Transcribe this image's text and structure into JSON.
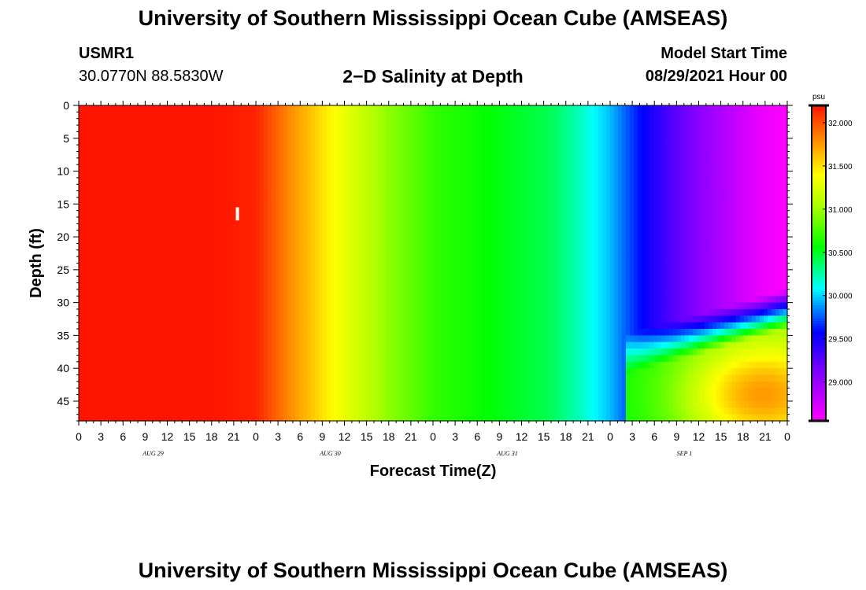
{
  "page": {
    "title_top": "University of Southern Mississippi Ocean Cube (AMSEAS)",
    "title_bottom": "University of Southern Mississippi Ocean Cube (AMSEAS)",
    "station_id": "USMR1",
    "station_coords": "30.0770N  88.5830W",
    "plot_title": "2−D Salinity at Depth",
    "model_start_label": "Model Start Time",
    "model_start_value": "08/29/2021 Hour 00"
  },
  "chart_data": {
    "type": "heatmap",
    "title": "2−D Salinity at Depth",
    "xlabel": "Forecast Time(Z)",
    "ylabel": "Depth (ft)",
    "x_unit": "forecast hour",
    "xlim": [
      0,
      96
    ],
    "ylim": [
      0,
      48
    ],
    "y_inverted": true,
    "x_tick_step_hours": 3,
    "x_tick_labels": [
      "0",
      "3",
      "6",
      "9",
      "12",
      "15",
      "18",
      "21",
      "0",
      "3",
      "6",
      "9",
      "12",
      "15",
      "18",
      "21",
      "0",
      "3",
      "6",
      "9",
      "12",
      "15",
      "18",
      "21",
      "0",
      "3",
      "6",
      "9",
      "12",
      "15",
      "18",
      "21",
      "0"
    ],
    "y_ticks": [
      0,
      5,
      10,
      15,
      20,
      25,
      30,
      35,
      40,
      45
    ],
    "day_labels": [
      {
        "text": "AUG 29",
        "hour": 12
      },
      {
        "text": "AUG 30",
        "hour": 36
      },
      {
        "text": "AUG 31",
        "hour": 60
      },
      {
        "text": "SEP 1",
        "hour": 84
      }
    ],
    "colorbar": {
      "unit": "psu",
      "range": [
        28.55,
        32.2
      ],
      "tick_values": [
        29.0,
        29.5,
        30.0,
        30.5,
        31.0,
        31.5,
        32.0
      ],
      "tick_labels": [
        "29.000",
        "29.500",
        "30.000",
        "30.500",
        "31.000",
        "31.500",
        "32.000"
      ]
    },
    "surface_salinity_by_hour": [
      {
        "hour": 0,
        "psu": 32.2
      },
      {
        "hour": 18,
        "psu": 32.2
      },
      {
        "hour": 24,
        "psu": 32.15
      },
      {
        "hour": 26,
        "psu": 32.0
      },
      {
        "hour": 30,
        "psu": 31.7
      },
      {
        "hour": 36,
        "psu": 31.3
      },
      {
        "hour": 42,
        "psu": 30.95
      },
      {
        "hour": 48,
        "psu": 30.7
      },
      {
        "hour": 56,
        "psu": 30.55
      },
      {
        "hour": 64,
        "psu": 30.4
      },
      {
        "hour": 68,
        "psu": 30.2
      },
      {
        "hour": 72,
        "psu": 29.95
      },
      {
        "hour": 76,
        "psu": 29.6
      },
      {
        "hour": 80,
        "psu": 29.3
      },
      {
        "hour": 84,
        "psu": 29.05
      },
      {
        "hour": 88,
        "psu": 28.85
      },
      {
        "hour": 92,
        "psu": 28.65
      },
      {
        "hour": 96,
        "psu": 28.55
      }
    ],
    "deep_layer": {
      "start_hour": 74,
      "depth_top_ft_at_start": 38,
      "depth_top_ft_at_end": 31,
      "max_psu": 31.5,
      "max_at_hour": 92,
      "max_at_depth_ft": 44
    },
    "marker": {
      "hour": 21.5,
      "depth_top_ft": 15.5,
      "depth_bottom_ft": 17.5
    }
  }
}
